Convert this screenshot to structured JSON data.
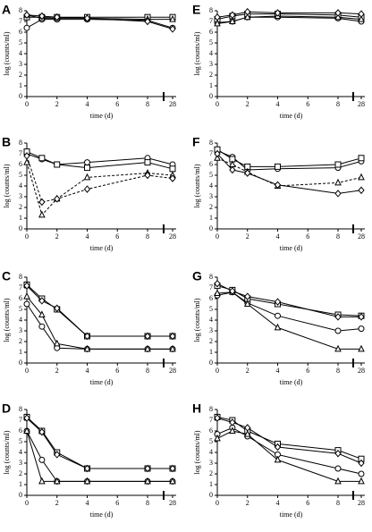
{
  "chart_data": [
    {
      "type": "line",
      "label": "A",
      "xlabel": "time (d)",
      "ylabel": "log (counts/ml)",
      "x": [
        0,
        1,
        2,
        4,
        8,
        28
      ],
      "xlim": [
        0,
        28
      ],
      "xticks": [
        0,
        2,
        4,
        6,
        8,
        28
      ],
      "ylim": [
        0,
        8
      ],
      "yticks": [
        0,
        1,
        2,
        3,
        4,
        5,
        6,
        7,
        8
      ],
      "series": [
        {
          "marker": "circle",
          "dash": false,
          "color": "#000000",
          "values": [
            6.4,
            7.2,
            7.2,
            7.2,
            7.1,
            6.4
          ]
        },
        {
          "marker": "square",
          "dash": false,
          "color": "#000000",
          "values": [
            7.4,
            7.4,
            7.4,
            7.4,
            7.4,
            7.4
          ]
        },
        {
          "marker": "triangle",
          "dash": false,
          "color": "#000000",
          "values": [
            7.6,
            7.3,
            7.3,
            7.3,
            7.2,
            7.2
          ]
        },
        {
          "marker": "diamond",
          "dash": false,
          "color": "#000000",
          "values": [
            7.6,
            7.5,
            7.4,
            7.3,
            7.0,
            6.3
          ]
        }
      ]
    },
    {
      "type": "line",
      "label": "B",
      "xlabel": "time (d)",
      "ylabel": "log (counts/ml)",
      "x": [
        0,
        1,
        2,
        4,
        8,
        28
      ],
      "xlim": [
        0,
        28
      ],
      "xticks": [
        0,
        2,
        4,
        6,
        8,
        28
      ],
      "ylim": [
        0,
        8
      ],
      "yticks": [
        0,
        1,
        2,
        3,
        4,
        5,
        6,
        7,
        8
      ],
      "series": [
        {
          "marker": "circle",
          "dash": false,
          "color": "#000000",
          "values": [
            7.0,
            6.5,
            6.0,
            6.2,
            6.6,
            6.0
          ]
        },
        {
          "marker": "square",
          "dash": false,
          "color": "#000000",
          "values": [
            7.2,
            6.6,
            6.0,
            5.7,
            6.2,
            5.6
          ]
        },
        {
          "marker": "triangle",
          "dash": true,
          "color": "#000000",
          "values": [
            6.2,
            1.3,
            2.8,
            4.8,
            5.2,
            5.0
          ]
        },
        {
          "marker": "diamond",
          "dash": true,
          "color": "#000000",
          "values": [
            6.8,
            2.5,
            2.8,
            3.7,
            5.0,
            4.7
          ]
        }
      ]
    },
    {
      "type": "line",
      "label": "C",
      "xlabel": "time (d)",
      "ylabel": "log (counts/ml)",
      "x": [
        0,
        1,
        2,
        4,
        8,
        28
      ],
      "xlim": [
        0,
        28
      ],
      "xticks": [
        0,
        2,
        4,
        6,
        8,
        28
      ],
      "ylim": [
        0,
        8
      ],
      "yticks": [
        0,
        1,
        2,
        3,
        4,
        5,
        6,
        7,
        8
      ],
      "series": [
        {
          "marker": "circle",
          "dash": false,
          "color": "#000000",
          "values": [
            5.5,
            3.4,
            1.4,
            1.3,
            1.3,
            1.3
          ]
        },
        {
          "marker": "square",
          "dash": false,
          "color": "#000000",
          "values": [
            7.3,
            6.0,
            5.0,
            2.5,
            2.5,
            2.5
          ]
        },
        {
          "marker": "triangle",
          "dash": false,
          "color": "#000000",
          "values": [
            6.2,
            4.5,
            1.8,
            1.3,
            1.3,
            1.3
          ]
        },
        {
          "marker": "diamond",
          "dash": false,
          "color": "#000000",
          "values": [
            7.2,
            5.8,
            5.1,
            2.5,
            2.5,
            2.5
          ]
        }
      ]
    },
    {
      "type": "line",
      "label": "D",
      "xlabel": "time (d)",
      "ylabel": "log (counts/ml)",
      "x": [
        0,
        1,
        2,
        4,
        8,
        28
      ],
      "xlim": [
        0,
        28
      ],
      "xticks": [
        0,
        2,
        4,
        6,
        8,
        28
      ],
      "ylim": [
        0,
        8
      ],
      "yticks": [
        0,
        1,
        2,
        3,
        4,
        5,
        6,
        7,
        8
      ],
      "series": [
        {
          "marker": "circle",
          "dash": false,
          "color": "#000000",
          "values": [
            6.0,
            3.3,
            1.3,
            1.3,
            1.3,
            1.3
          ]
        },
        {
          "marker": "square",
          "dash": false,
          "color": "#000000",
          "values": [
            7.3,
            6.0,
            4.0,
            2.5,
            2.5,
            2.5
          ]
        },
        {
          "marker": "triangle",
          "dash": false,
          "color": "#000000",
          "values": [
            6.0,
            1.3,
            1.3,
            1.3,
            1.3,
            1.3
          ]
        },
        {
          "marker": "diamond",
          "dash": false,
          "color": "#000000",
          "values": [
            7.2,
            5.9,
            3.8,
            2.5,
            2.5,
            2.5
          ]
        }
      ]
    },
    {
      "type": "line",
      "label": "E",
      "xlabel": "time (d)",
      "ylabel": "log (counts/ml)",
      "x": [
        0,
        1,
        2,
        4,
        8,
        28
      ],
      "xlim": [
        0,
        28
      ],
      "xticks": [
        0,
        2,
        4,
        6,
        8,
        28
      ],
      "ylim": [
        0,
        8
      ],
      "yticks": [
        0,
        1,
        2,
        3,
        4,
        5,
        6,
        7,
        8
      ],
      "series": [
        {
          "marker": "circle",
          "dash": false,
          "color": "#000000",
          "values": [
            6.9,
            7.0,
            7.4,
            7.4,
            7.3,
            7.0
          ]
        },
        {
          "marker": "square",
          "dash": false,
          "color": "#000000",
          "values": [
            7.2,
            7.5,
            7.7,
            7.7,
            7.6,
            7.4
          ]
        },
        {
          "marker": "triangle",
          "dash": false,
          "color": "#000000",
          "values": [
            6.8,
            7.0,
            7.4,
            7.5,
            7.4,
            7.2
          ]
        },
        {
          "marker": "diamond",
          "dash": false,
          "color": "#000000",
          "values": [
            7.4,
            7.6,
            7.9,
            7.8,
            7.8,
            7.7
          ]
        }
      ]
    },
    {
      "type": "line",
      "label": "F",
      "xlabel": "time (d)",
      "ylabel": "log (counts/ml)",
      "x": [
        0,
        1,
        2,
        4,
        8,
        28
      ],
      "xlim": [
        0,
        28
      ],
      "xticks": [
        0,
        2,
        4,
        6,
        8,
        28
      ],
      "ylim": [
        0,
        8
      ],
      "yticks": [
        0,
        1,
        2,
        3,
        4,
        5,
        6,
        7,
        8
      ],
      "series": [
        {
          "marker": "circle",
          "dash": false,
          "color": "#000000",
          "values": [
            7.3,
            6.7,
            5.5,
            5.6,
            5.7,
            6.3
          ]
        },
        {
          "marker": "square",
          "dash": false,
          "color": "#000000",
          "values": [
            7.4,
            6.5,
            5.8,
            5.8,
            6.0,
            6.6
          ]
        },
        {
          "marker": "triangle",
          "dash": true,
          "color": "#000000",
          "values": [
            6.6,
            6.0,
            5.3,
            4.0,
            4.3,
            4.8
          ]
        },
        {
          "marker": "diamond",
          "dash": false,
          "color": "#000000",
          "values": [
            7.0,
            5.5,
            5.2,
            4.1,
            3.3,
            3.6
          ]
        }
      ]
    },
    {
      "type": "line",
      "label": "G",
      "xlabel": "time (d)",
      "ylabel": "log (counts/ml)",
      "x": [
        0,
        1,
        2,
        4,
        8,
        28
      ],
      "xlim": [
        0,
        28
      ],
      "xticks": [
        0,
        2,
        4,
        6,
        8,
        28
      ],
      "ylim": [
        0,
        8
      ],
      "yticks": [
        0,
        1,
        2,
        3,
        4,
        5,
        6,
        7,
        8
      ],
      "series": [
        {
          "marker": "circle",
          "dash": false,
          "color": "#000000",
          "values": [
            6.3,
            6.6,
            5.6,
            4.4,
            3.0,
            3.2
          ]
        },
        {
          "marker": "square",
          "dash": false,
          "color": "#000000",
          "values": [
            7.2,
            6.8,
            6.0,
            5.5,
            4.5,
            4.4
          ]
        },
        {
          "marker": "triangle",
          "dash": false,
          "color": "#000000",
          "values": [
            6.5,
            6.6,
            5.5,
            3.3,
            1.3,
            1.3
          ]
        },
        {
          "marker": "diamond",
          "dash": false,
          "color": "#000000",
          "values": [
            7.4,
            6.7,
            6.2,
            5.7,
            4.3,
            4.3
          ]
        }
      ]
    },
    {
      "type": "line",
      "label": "H",
      "xlabel": "time (d)",
      "ylabel": "log (counts/ml)",
      "x": [
        0,
        1,
        2,
        4,
        8,
        28
      ],
      "xlim": [
        0,
        28
      ],
      "xticks": [
        0,
        2,
        4,
        6,
        8,
        28
      ],
      "ylim": [
        0,
        8
      ],
      "yticks": [
        0,
        1,
        2,
        3,
        4,
        5,
        6,
        7,
        8
      ],
      "series": [
        {
          "marker": "circle",
          "dash": false,
          "color": "#000000",
          "values": [
            5.7,
            6.3,
            5.5,
            3.8,
            2.5,
            2.0
          ]
        },
        {
          "marker": "square",
          "dash": false,
          "color": "#000000",
          "values": [
            7.3,
            7.0,
            6.0,
            4.8,
            4.2,
            3.4
          ]
        },
        {
          "marker": "triangle",
          "dash": false,
          "color": "#000000",
          "values": [
            5.3,
            6.0,
            5.7,
            3.3,
            1.3,
            1.3
          ]
        },
        {
          "marker": "diamond",
          "dash": false,
          "color": "#000000",
          "values": [
            7.2,
            6.8,
            6.3,
            4.5,
            3.9,
            3.0
          ]
        }
      ]
    }
  ]
}
